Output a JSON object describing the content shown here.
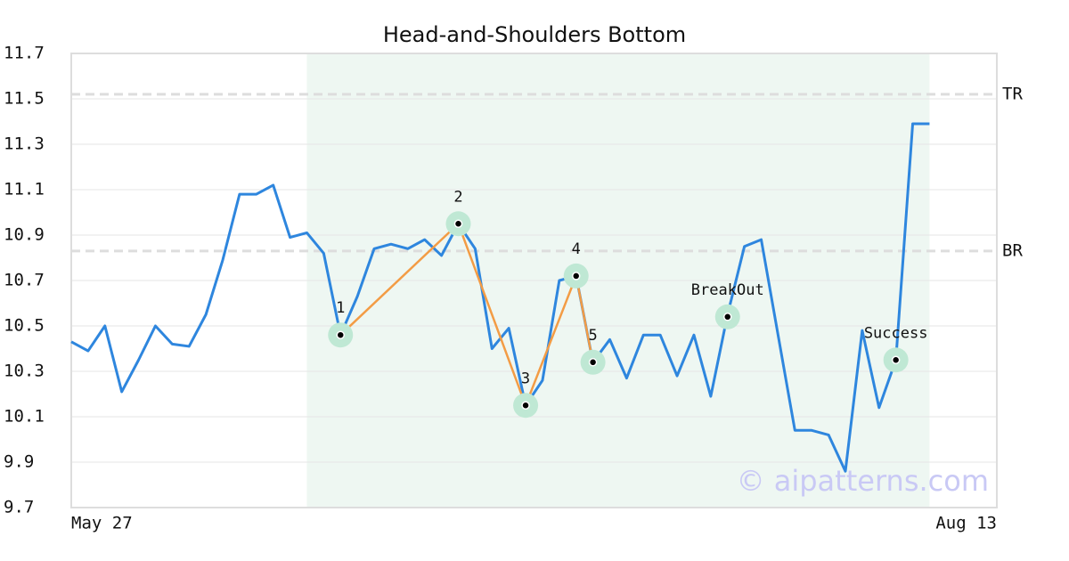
{
  "chart_data": {
    "type": "line",
    "title": "Head-and-Shoulders Bottom",
    "watermark": "© aipatterns.com",
    "xlim": [
      0,
      55
    ],
    "xticks": [
      {
        "value": 0,
        "label": "May 27"
      },
      {
        "value": 55,
        "label": "Aug 13"
      }
    ],
    "ylim": [
      9.7,
      11.7
    ],
    "yticks": [
      9.7,
      9.9,
      10.1,
      10.3,
      10.5,
      10.7,
      10.9,
      11.1,
      11.3,
      11.5,
      11.7
    ],
    "grid": true,
    "shaded_range": [
      14,
      51
    ],
    "shade_color": "#eef7f2",
    "series": [
      {
        "name": "Price",
        "color": "#2e86de",
        "x": [
          0,
          1,
          2,
          3,
          4,
          5,
          6,
          7,
          8,
          9,
          10,
          11,
          12,
          13,
          14,
          15,
          16,
          17,
          18,
          19,
          20,
          21,
          22,
          23,
          24,
          25,
          26,
          27,
          28,
          29,
          30,
          31,
          32,
          33,
          34,
          35,
          36,
          37,
          38,
          39,
          40,
          41,
          42,
          43,
          44,
          45,
          46,
          47,
          48,
          49,
          50,
          51
        ],
        "values": [
          10.43,
          10.39,
          10.5,
          10.21,
          10.35,
          10.5,
          10.42,
          10.41,
          10.55,
          10.79,
          11.08,
          11.08,
          11.12,
          10.89,
          10.91,
          10.82,
          10.46,
          10.63,
          10.84,
          10.86,
          10.84,
          10.88,
          10.81,
          10.95,
          10.84,
          10.4,
          10.49,
          10.15,
          10.26,
          10.7,
          10.72,
          10.34,
          10.44,
          10.27,
          10.46,
          10.46,
          10.28,
          10.46,
          10.19,
          10.55,
          10.85,
          10.88,
          10.46,
          10.04,
          10.04,
          10.02,
          9.86,
          10.48,
          10.14,
          10.35,
          11.39,
          11.39
        ]
      }
    ],
    "pattern_line_color": "#f39c45",
    "pattern_points": [
      {
        "label": "1",
        "x": 16,
        "value": 10.46
      },
      {
        "label": "2",
        "x": 23,
        "value": 10.95
      },
      {
        "label": "3",
        "x": 27,
        "value": 10.15
      },
      {
        "label": "4",
        "x": 30,
        "value": 10.72
      },
      {
        "label": "5",
        "x": 31,
        "value": 10.34
      }
    ],
    "signal_points": [
      {
        "label": "BreakOut",
        "x": 39,
        "value": 10.54
      },
      {
        "label": "Success",
        "x": 49,
        "value": 10.35
      }
    ],
    "reference_lines": [
      {
        "label": "TR",
        "value": 11.52
      },
      {
        "label": "BR",
        "value": 10.83
      }
    ]
  }
}
